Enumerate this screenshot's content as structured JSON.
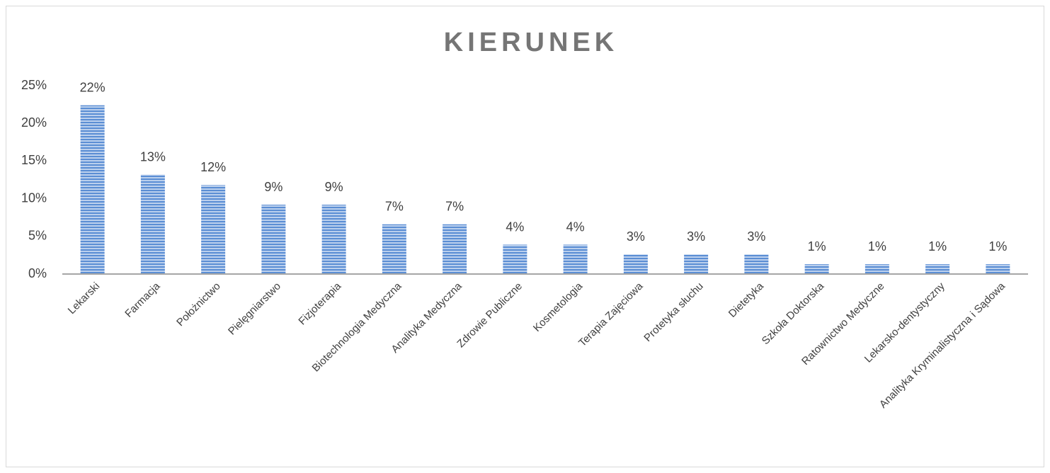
{
  "chart_data": {
    "type": "bar",
    "title": "KIERUNEK",
    "categories": [
      "Lekarski",
      "Farmacja",
      "Położnictwo",
      "Pielęgniarstwo",
      "Fizjoterapia",
      "Biotechnologia Medyczna",
      "Analityka Medyczna",
      "Zdrowie Publiczne",
      "Kosmetologia",
      "Terapia Zajęciowa",
      "Protetyka słuchu",
      "Dietetyka",
      "Szkoła Doktorska",
      "Ratownictwo Medyczne",
      "Lekarsko-dentystyczny",
      "Analityka Kryminalistyczna i Sądowa"
    ],
    "values": [
      22.4,
      13.2,
      11.8,
      9.2,
      9.2,
      6.6,
      6.6,
      3.9,
      3.9,
      2.6,
      2.6,
      2.6,
      1.3,
      1.3,
      1.3,
      1.3
    ],
    "value_labels": [
      "22%",
      "13%",
      "12%",
      "9%",
      "9%",
      "7%",
      "7%",
      "4%",
      "4%",
      "3%",
      "3%",
      "3%",
      "1%",
      "1%",
      "1%",
      "1%"
    ],
    "color": "#5b8ed4",
    "ylim": [
      0,
      25
    ],
    "yticks": [
      {
        "value": 0,
        "label": "0%"
      },
      {
        "value": 5,
        "label": "5%"
      },
      {
        "value": 10,
        "label": "10%"
      },
      {
        "value": 15,
        "label": "15%"
      },
      {
        "value": 20,
        "label": "20%"
      },
      {
        "value": 25,
        "label": "25%"
      }
    ],
    "grid": false
  }
}
